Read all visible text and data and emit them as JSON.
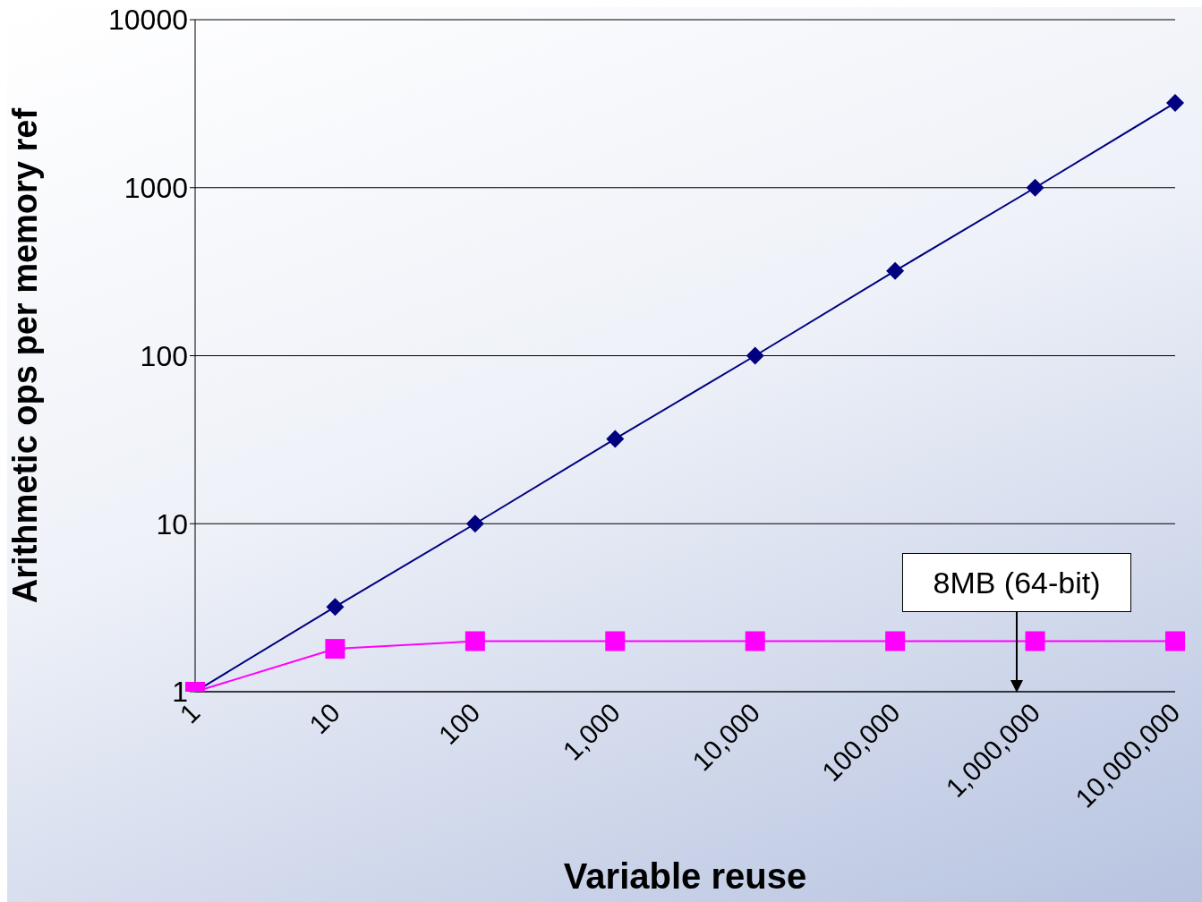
{
  "chart_data": {
    "type": "line",
    "xlabel": "Variable reuse",
    "ylabel": "Arithmetic ops per memory ref",
    "categories": [
      "1",
      "10",
      "100",
      "1,000",
      "10,000",
      "100,000",
      "1,000,000",
      "10,000,000"
    ],
    "series": [
      {
        "color": "#000080",
        "marker": "diamond",
        "values": [
          1,
          3.2,
          10,
          32,
          100,
          320,
          1000,
          3200
        ]
      },
      {
        "color": "#ff00ff",
        "marker": "square",
        "values": [
          1,
          1.8,
          2,
          2,
          2,
          2,
          2,
          2
        ]
      }
    ],
    "log": "y",
    "ylim": [
      1,
      10000
    ],
    "yticks": [
      1,
      10,
      100,
      1000,
      10000
    ],
    "grid": "y",
    "line_style": "solid",
    "annotations": [
      "8MB (64-bit)"
    ]
  }
}
